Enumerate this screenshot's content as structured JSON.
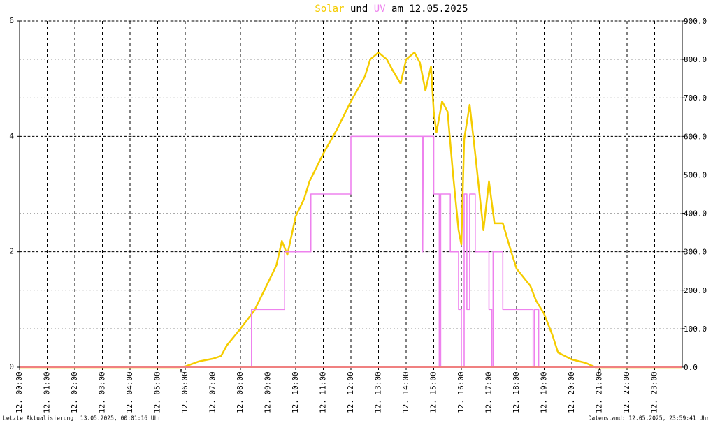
{
  "chart_data": {
    "type": "line",
    "title_words": [
      "und",
      "am 12.05.2025"
    ],
    "series": [
      {
        "name": "Solar",
        "color": "#f5cc00",
        "axis": "y2",
        "x": [
          0,
          5.8,
          6.0,
          6.5,
          7.0,
          7.3,
          7.5,
          8.0,
          8.5,
          9.0,
          9.3,
          9.5,
          9.7,
          10.0,
          10.3,
          10.5,
          11.0,
          11.5,
          12.0,
          12.5,
          12.7,
          13.0,
          13.3,
          13.5,
          13.8,
          14.0,
          14.3,
          14.5,
          14.7,
          14.9,
          15.0,
          15.1,
          15.3,
          15.5,
          15.7,
          15.9,
          16.0,
          16.1,
          16.3,
          16.5,
          16.8,
          17.0,
          17.2,
          17.5,
          17.8,
          18.0,
          18.5,
          18.7,
          19.0,
          19.3,
          19.5,
          20.0,
          20.5,
          20.85,
          24
        ],
        "values": [
          0,
          0,
          2,
          15,
          22,
          29,
          56,
          100,
          147,
          220,
          265,
          328,
          292,
          392,
          437,
          483,
          555,
          619,
          691,
          755,
          800,
          818,
          800,
          773,
          737,
          800,
          818,
          791,
          719,
          782,
          664,
          610,
          691,
          664,
          501,
          356,
          319,
          592,
          682,
          555,
          356,
          483,
          374,
          374,
          301,
          256,
          211,
          174,
          138,
          83,
          38,
          20,
          11,
          0,
          0
        ]
      },
      {
        "name": "UV",
        "color": "#ee82ee",
        "axis": "y",
        "x": [
          0,
          8.4,
          8.4,
          9.6,
          9.6,
          10.55,
          10.55,
          12.0,
          12.0,
          14.6,
          14.6,
          14.62,
          15.0,
          15.0,
          15.2,
          15.2,
          15.25,
          15.25,
          15.6,
          15.6,
          15.9,
          15.9,
          16.0,
          16.0,
          16.1,
          16.1,
          16.2,
          16.2,
          16.3,
          16.3,
          16.5,
          16.5,
          17.0,
          17.0,
          17.1,
          17.1,
          17.15,
          17.15,
          17.5,
          17.5,
          18.6,
          18.6,
          18.65,
          18.65,
          18.8,
          18.8,
          24
        ],
        "values": [
          0,
          0,
          1,
          1,
          2,
          2,
          3,
          3,
          4,
          4,
          2,
          4,
          4,
          3,
          3,
          0,
          0,
          3,
          3,
          2,
          2,
          1,
          1,
          0,
          0,
          3,
          3,
          1,
          1,
          3,
          3,
          2,
          2,
          1,
          1,
          0,
          0,
          2,
          2,
          1,
          1,
          0,
          0,
          1,
          1,
          0,
          0
        ]
      }
    ],
    "xlim": [
      0,
      24
    ],
    "xticks": [
      {
        "value": 0,
        "label": "12. 00:00"
      },
      {
        "value": 1,
        "label": "12. 01:00"
      },
      {
        "value": 2,
        "label": "12. 02:00"
      },
      {
        "value": 3,
        "label": "12. 03:00"
      },
      {
        "value": 4,
        "label": "12. 04:00"
      },
      {
        "value": 5,
        "label": "12. 05:00"
      },
      {
        "value": 6,
        "label": "12. 06:00"
      },
      {
        "value": 7,
        "label": "12. 07:00"
      },
      {
        "value": 8,
        "label": "12. 08:00"
      },
      {
        "value": 9,
        "label": "12. 09:00"
      },
      {
        "value": 10,
        "label": "12. 10:00"
      },
      {
        "value": 11,
        "label": "12. 11:00"
      },
      {
        "value": 12,
        "label": "12. 12:00"
      },
      {
        "value": 13,
        "label": "12. 13:00"
      },
      {
        "value": 14,
        "label": "12. 14:00"
      },
      {
        "value": 15,
        "label": "12. 15:00"
      },
      {
        "value": 16,
        "label": "12. 16:00"
      },
      {
        "value": 17,
        "label": "12. 17:00"
      },
      {
        "value": 18,
        "label": "12. 18:00"
      },
      {
        "value": 19,
        "label": "12. 19:00"
      },
      {
        "value": 20,
        "label": "12. 20:00"
      },
      {
        "value": 21,
        "label": "12. 21:00"
      },
      {
        "value": 22,
        "label": "12. 22:00"
      },
      {
        "value": 23,
        "label": "12. 23:00"
      }
    ],
    "ylim": [
      0,
      6
    ],
    "yticks": [
      0,
      2,
      4,
      6
    ],
    "y2lim": [
      0,
      900
    ],
    "y2ticks": [
      {
        "value": 0,
        "label": "0.0"
      },
      {
        "value": 100,
        "label": "100.0"
      },
      {
        "value": 200,
        "label": "200.0"
      },
      {
        "value": 300,
        "label": "300.0"
      },
      {
        "value": 400,
        "label": "400.0"
      },
      {
        "value": 500,
        "label": "500.0"
      },
      {
        "value": 600,
        "label": "600.0"
      },
      {
        "value": 700,
        "label": "700.0"
      },
      {
        "value": 800,
        "label": "800.0"
      },
      {
        "value": 900,
        "label": "900.0"
      }
    ],
    "grid": true,
    "annotations": [
      {
        "x": 5.85,
        "label": "A"
      },
      {
        "x": 21.0,
        "label": "U"
      }
    ],
    "footer_left": "Letzte Aktualisierung: 13.05.2025, 00:01:16 Uhr",
    "footer_right": "Datenstand: 12.05.2025, 23:59:41 Uhr"
  }
}
